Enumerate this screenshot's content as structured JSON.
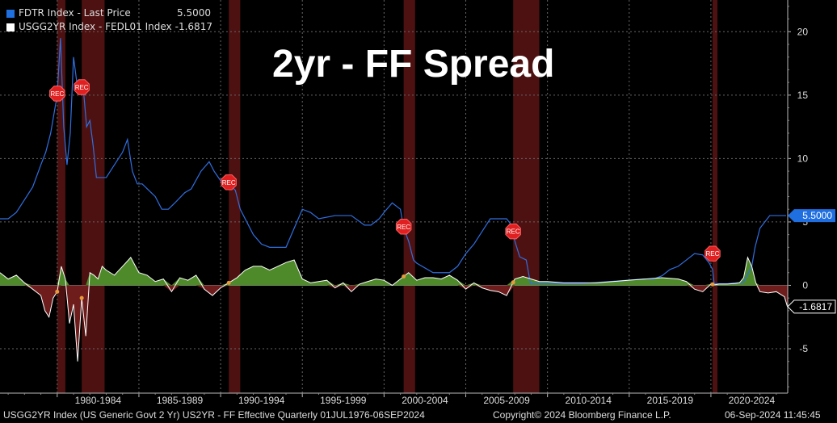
{
  "header": {
    "title": "2yr - FF Spread"
  },
  "legend": [
    {
      "label": "FDTR Index - Last Price",
      "value": "5.5000",
      "color": "#1f6fe0"
    },
    {
      "label": "USGG2YR Index - FEDL01 Index",
      "value": "-1.6817",
      "color": "#ffffff"
    }
  ],
  "last_value_tags": [
    {
      "text": "5.5000",
      "color": "#1f6fe0"
    },
    {
      "text": "-1.6817",
      "color": "#ffffff"
    }
  ],
  "footer": {
    "left": "USGG2YR Index (US Generic Govt 2 Yr) US2YR - FF Effective  Quarterly 01JUL1976-06SEP2024",
    "copyright": "Copyright© 2024 Bloomberg Finance L.P.",
    "timestamp": "06-Sep-2024 11:45:45"
  },
  "chart_data": {
    "type": "line",
    "title": "2yr - FF Spread",
    "xlim": [
      1976.5,
      2024.7
    ],
    "ylim": [
      -8.5,
      22.5
    ],
    "yticks": [
      20,
      15,
      10,
      5,
      0,
      -5
    ],
    "ytick_labels": [
      "20",
      "15",
      "10",
      "5",
      "0",
      "-5"
    ],
    "xtick_labels": [
      "1980-1984",
      "1985-1989",
      "1990-1994",
      "1995-1999",
      "2000-2004",
      "2005-2009",
      "2010-2014",
      "2015-2019",
      "2020-2024"
    ],
    "xtick_centers": [
      1982.5,
      1987.5,
      1992.5,
      1997.5,
      2002.5,
      2007.5,
      2012.5,
      2017.5,
      2022.5
    ],
    "grid": true,
    "recessions": [
      [
        1980.0,
        1980.5
      ],
      [
        1981.5,
        1982.9
      ],
      [
        1990.5,
        1991.2
      ],
      [
        2001.2,
        2001.9
      ],
      [
        2007.9,
        2009.5
      ],
      [
        2020.1,
        2020.4
      ]
    ],
    "rec_label": "REC",
    "series": [
      {
        "name": "FDTR Index - Last Price",
        "color": "#2f6fe0",
        "x": [
          1976.5,
          1977.0,
          1977.5,
          1978.0,
          1978.5,
          1979.0,
          1979.3,
          1979.6,
          1980.0,
          1980.2,
          1980.4,
          1980.6,
          1980.8,
          1981.0,
          1981.2,
          1981.4,
          1981.6,
          1981.8,
          1982.0,
          1982.2,
          1982.4,
          1982.7,
          1983.0,
          1983.5,
          1984.0,
          1984.3,
          1984.6,
          1984.9,
          1985.2,
          1985.6,
          1986.0,
          1986.4,
          1986.8,
          1987.2,
          1987.8,
          1988.2,
          1988.8,
          1989.3,
          1989.6,
          1990.0,
          1990.5,
          1990.9,
          1991.2,
          1991.6,
          1992.0,
          1992.5,
          1993.0,
          1994.0,
          1994.5,
          1995.0,
          1995.5,
          1996.0,
          1997.0,
          1998.0,
          1998.8,
          1999.2,
          1999.7,
          2000.0,
          2000.5,
          2001.0,
          2001.2,
          2001.5,
          2001.8,
          2002.0,
          2003.0,
          2003.5,
          2004.0,
          2004.5,
          2005.0,
          2005.5,
          2006.0,
          2006.5,
          2007.0,
          2007.5,
          2007.8,
          2008.0,
          2008.3,
          2008.7,
          2008.96,
          2009.5,
          2012.0,
          2015.9,
          2016.5,
          2017.0,
          2017.5,
          2018.0,
          2018.5,
          2019.0,
          2019.5,
          2019.9,
          2020.1,
          2020.2,
          2021.0,
          2022.0,
          2022.2,
          2022.5,
          2022.7,
          2023.0,
          2023.3,
          2023.6,
          2024.6
        ],
        "y": [
          5.25,
          5.25,
          5.75,
          6.75,
          7.75,
          9.5,
          10.5,
          12.0,
          15.0,
          19.5,
          12.5,
          9.5,
          12.0,
          18.0,
          16.0,
          15.5,
          15.5,
          12.5,
          13.0,
          11.0,
          8.5,
          8.5,
          8.5,
          9.5,
          10.5,
          11.5,
          9.0,
          8.0,
          8.0,
          7.5,
          7.0,
          6.0,
          6.0,
          6.5,
          7.3,
          7.6,
          9.0,
          9.75,
          9.0,
          8.25,
          8.0,
          7.5,
          6.0,
          5.0,
          4.0,
          3.25,
          3.0,
          3.0,
          4.5,
          6.0,
          5.75,
          5.25,
          5.5,
          5.5,
          4.75,
          4.75,
          5.25,
          5.75,
          6.5,
          6.0,
          4.5,
          3.5,
          2.0,
          1.75,
          1.0,
          1.0,
          1.0,
          1.5,
          2.5,
          3.25,
          4.25,
          5.25,
          5.25,
          5.25,
          4.75,
          3.5,
          2.25,
          2.0,
          0.125,
          0.125,
          0.125,
          0.5,
          0.5,
          0.75,
          1.25,
          1.5,
          2.0,
          2.5,
          2.4,
          1.75,
          1.25,
          0.125,
          0.125,
          0.25,
          0.75,
          1.5,
          3.0,
          4.5,
          5.0,
          5.5,
          5.5
        ]
      },
      {
        "name": "USGG2YR Index - FEDL01 Index",
        "color": "#ffffff",
        "x": [
          1976.5,
          1977.0,
          1977.5,
          1978.0,
          1978.5,
          1979.0,
          1979.25,
          1979.5,
          1979.75,
          1980.0,
          1980.25,
          1980.5,
          1980.75,
          1981.0,
          1981.25,
          1981.5,
          1981.75,
          1982.0,
          1982.25,
          1982.5,
          1982.75,
          1983.0,
          1983.5,
          1984.0,
          1984.5,
          1985.0,
          1985.5,
          1986.0,
          1986.5,
          1987.0,
          1987.5,
          1988.0,
          1988.5,
          1989.0,
          1989.5,
          1990.0,
          1990.5,
          1991.0,
          1991.5,
          1992.0,
          1992.5,
          1993.0,
          1993.5,
          1994.0,
          1994.5,
          1995.0,
          1995.5,
          1996.0,
          1996.5,
          1997.0,
          1997.5,
          1998.0,
          1998.5,
          1999.0,
          1999.5,
          2000.0,
          2000.5,
          2001.0,
          2001.5,
          2002.0,
          2002.5,
          2003.0,
          2003.5,
          2004.0,
          2004.5,
          2005.0,
          2005.5,
          2006.0,
          2006.5,
          2007.0,
          2007.5,
          2008.0,
          2008.5,
          2009.0,
          2009.5,
          2010.0,
          2011.0,
          2012.0,
          2013.0,
          2014.0,
          2015.0,
          2016.0,
          2017.0,
          2018.0,
          2018.5,
          2019.0,
          2019.5,
          2020.0,
          2020.25,
          2020.5,
          2021.0,
          2021.5,
          2021.75,
          2022.0,
          2022.25,
          2022.5,
          2022.75,
          2023.0,
          2023.5,
          2024.0,
          2024.5,
          2024.68
        ],
        "y": [
          1.0,
          0.5,
          0.8,
          0.2,
          -0.3,
          -0.8,
          -2.0,
          -2.5,
          -1.0,
          -0.5,
          1.5,
          0.5,
          -3.0,
          -1.5,
          -6.0,
          -1.0,
          -4.0,
          1.0,
          0.8,
          0.5,
          1.5,
          1.2,
          0.8,
          1.5,
          2.2,
          1.0,
          0.8,
          0.3,
          0.5,
          -0.5,
          0.6,
          0.4,
          0.8,
          -0.3,
          -0.8,
          -0.2,
          0.2,
          0.6,
          1.2,
          1.5,
          1.5,
          1.2,
          1.5,
          1.8,
          2.0,
          0.5,
          0.2,
          0.3,
          0.4,
          -0.2,
          0.2,
          -0.5,
          0.1,
          0.3,
          0.5,
          0.4,
          0.0,
          0.5,
          1.0,
          0.4,
          0.6,
          0.6,
          0.5,
          0.8,
          0.4,
          -0.3,
          0.2,
          -0.2,
          -0.4,
          -0.5,
          -0.8,
          0.5,
          0.7,
          0.5,
          0.3,
          0.3,
          0.2,
          0.2,
          0.2,
          0.3,
          0.4,
          0.5,
          0.6,
          0.5,
          0.3,
          -0.3,
          -0.5,
          0.1,
          0.05,
          0.1,
          0.1,
          0.15,
          0.2,
          0.6,
          2.2,
          1.5,
          0.2,
          -0.5,
          -0.6,
          -0.5,
          -0.9,
          -1.6817
        ]
      }
    ]
  }
}
